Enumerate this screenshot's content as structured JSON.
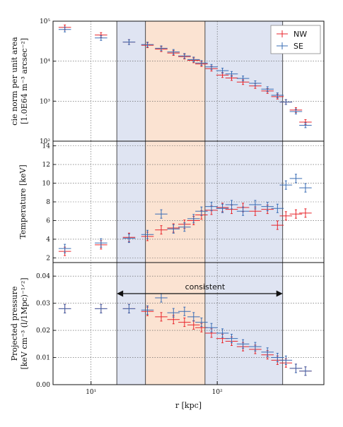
{
  "colors": {
    "NW": "#e8262c",
    "SE": "#3a6db5",
    "shade_blue": "#dfe4f2",
    "shade_orange": "#fbe3d2"
  },
  "chart_data": [
    {
      "type": "scatter",
      "panel": "top",
      "ylabel": [
        "cie norm per unit area",
        "[1.0E64 m⁻³ arcsec⁻²]"
      ],
      "yscale": "log",
      "ylim": [
        100,
        100000
      ],
      "yticks": [
        100,
        1000,
        10000,
        100000
      ],
      "yticklabels": [
        "10²",
        "10³",
        "10⁴",
        "10⁵"
      ],
      "legend": {
        "position": "top-right",
        "entries": [
          "NW",
          "SE"
        ]
      },
      "series": [
        {
          "name": "NW",
          "x": [
            6.2,
            12,
            20,
            28,
            36,
            45,
            55,
            65,
            75,
            90,
            110,
            130,
            160,
            200,
            250,
            300,
            350,
            420,
            500
          ],
          "y": [
            70000,
            45000,
            30000,
            25000,
            20000,
            16000,
            13000,
            10500,
            8500,
            6500,
            4500,
            3800,
            3000,
            2400,
            1800,
            1300,
            950,
            600,
            300
          ]
        },
        {
          "name": "SE",
          "x": [
            6.2,
            12,
            20,
            28,
            36,
            45,
            55,
            65,
            75,
            90,
            110,
            130,
            160,
            200,
            250,
            300,
            350,
            420,
            500
          ],
          "y": [
            62000,
            38000,
            30000,
            26000,
            21000,
            17000,
            13500,
            11000,
            9000,
            7200,
            5800,
            4800,
            3700,
            2800,
            2000,
            1400,
            950,
            550,
            250
          ]
        }
      ]
    },
    {
      "type": "scatter",
      "panel": "middle",
      "ylabel": [
        "Temperature [keV]"
      ],
      "yscale": "linear",
      "ylim": [
        1.5,
        14.5
      ],
      "yticks": [
        2,
        4,
        6,
        8,
        10,
        12,
        14
      ],
      "yticklabels": [
        "2",
        "4",
        "6",
        "8",
        "10",
        "12",
        "14"
      ],
      "series": [
        {
          "name": "NW",
          "x": [
            6.2,
            12,
            20,
            28,
            36,
            45,
            55,
            65,
            75,
            90,
            110,
            130,
            160,
            200,
            250,
            300,
            350,
            420,
            500
          ],
          "y": [
            2.7,
            3.4,
            4.2,
            4.3,
            5.0,
            5.2,
            5.6,
            6.0,
            6.6,
            7.1,
            7.4,
            7.2,
            7.4,
            7.0,
            7.2,
            5.5,
            6.5,
            6.7,
            6.8
          ]
        },
        {
          "name": "SE",
          "x": [
            6.2,
            12,
            20,
            28,
            36,
            45,
            55,
            65,
            75,
            90,
            110,
            130,
            160,
            200,
            250,
            300,
            350,
            420,
            500
          ],
          "y": [
            3.0,
            3.6,
            4.1,
            4.5,
            6.7,
            5.1,
            5.3,
            6.2,
            7.0,
            7.5,
            7.3,
            7.7,
            7.0,
            7.7,
            7.5,
            7.3,
            9.8,
            10.5,
            9.5
          ]
        }
      ]
    },
    {
      "type": "scatter",
      "panel": "bottom",
      "xlabel": "r [kpc]",
      "ylabel": [
        "Projected pressure",
        "[keV cm⁻³ (l/1Mpc)⁻¹ᐟ²]"
      ],
      "xscale": "log",
      "xlim": [
        5,
        700
      ],
      "xticks": [
        10,
        100
      ],
      "xticklabels": [
        "10¹",
        "10²"
      ],
      "yscale": "linear",
      "ylim": [
        0.0,
        0.045
      ],
      "yticks": [
        0.0,
        0.01,
        0.02,
        0.03,
        0.04
      ],
      "yticklabels": [
        "0.00",
        "0.01",
        "0.02",
        "0.03",
        "0.04"
      ],
      "annotation": {
        "text": "consistent",
        "x_from": 16,
        "x_to": 330
      },
      "series": [
        {
          "name": "NW",
          "x": [
            6.2,
            12,
            20,
            28,
            36,
            45,
            55,
            65,
            75,
            90,
            110,
            130,
            160,
            200,
            250,
            300,
            350,
            420,
            500
          ],
          "y": [
            0.028,
            0.028,
            0.028,
            0.027,
            0.025,
            0.024,
            0.023,
            0.022,
            0.021,
            0.019,
            0.017,
            0.016,
            0.014,
            0.013,
            0.011,
            0.009,
            0.008,
            0.006,
            0.005
          ]
        },
        {
          "name": "SE",
          "x": [
            6.2,
            12,
            20,
            28,
            36,
            45,
            55,
            65,
            75,
            90,
            110,
            130,
            160,
            200,
            250,
            300,
            350,
            420,
            500
          ],
          "y": [
            0.028,
            0.028,
            0.028,
            0.0275,
            0.032,
            0.0265,
            0.027,
            0.025,
            0.023,
            0.021,
            0.019,
            0.017,
            0.015,
            0.014,
            0.012,
            0.01,
            0.009,
            0.006,
            0.005
          ]
        }
      ]
    }
  ],
  "shaded_regions": [
    {
      "x0": 16,
      "x1": 27,
      "color_key": "shade_blue"
    },
    {
      "x0": 27,
      "x1": 80,
      "color_key": "shade_orange"
    },
    {
      "x0": 80,
      "x1": 330,
      "color_key": "shade_blue"
    }
  ],
  "vlines": [
    16,
    27,
    80,
    330
  ]
}
